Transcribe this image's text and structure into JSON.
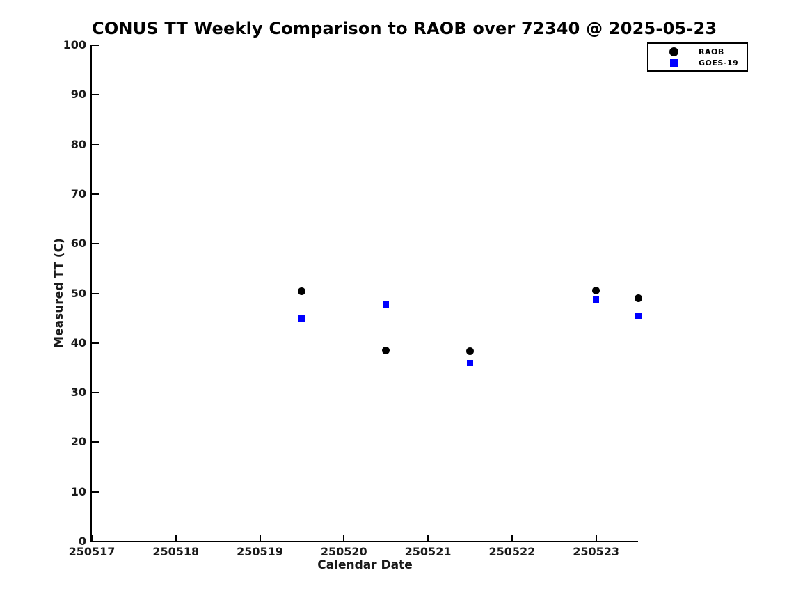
{
  "figure": {
    "background": "#ffffff",
    "text_color": "#000000"
  },
  "chart_data": {
    "type": "scatter",
    "title": "CONUS TT Weekly Comparison to RAOB over 72340 @ 2025-05-23",
    "xlabel": "Calendar Date",
    "ylabel": "Measured TT (C)",
    "xlim": [
      250517,
      250523.5
    ],
    "ylim": [
      0,
      100
    ],
    "x_tick_values": [
      250517,
      250518,
      250519,
      250520,
      250521,
      250522,
      250523
    ],
    "x_tick_labels": [
      "250517",
      "250518",
      "250519",
      "250520",
      "250521",
      "250522",
      "250523"
    ],
    "y_tick_values": [
      0,
      10,
      20,
      30,
      40,
      50,
      60,
      70,
      80,
      90,
      100
    ],
    "y_tick_labels": [
      "0",
      "10",
      "20",
      "30",
      "40",
      "50",
      "60",
      "70",
      "80",
      "90",
      "100"
    ],
    "grid": false,
    "tick_direction": "in",
    "legend_position": "top-right",
    "series": [
      {
        "name": "RAOB",
        "marker": "circle",
        "color": "#000000",
        "points": [
          {
            "x": 250519.5,
            "y": 50.4
          },
          {
            "x": 250520.5,
            "y": 38.5
          },
          {
            "x": 250521.5,
            "y": 38.3
          },
          {
            "x": 250523.0,
            "y": 50.5
          },
          {
            "x": 250523.5,
            "y": 49.0
          }
        ]
      },
      {
        "name": "GOES-19",
        "marker": "square",
        "color": "#0000ff",
        "points": [
          {
            "x": 250519.5,
            "y": 44.9
          },
          {
            "x": 250520.5,
            "y": 47.7
          },
          {
            "x": 250521.5,
            "y": 36.0
          },
          {
            "x": 250523.0,
            "y": 48.7
          },
          {
            "x": 250523.5,
            "y": 45.5
          }
        ]
      }
    ]
  }
}
